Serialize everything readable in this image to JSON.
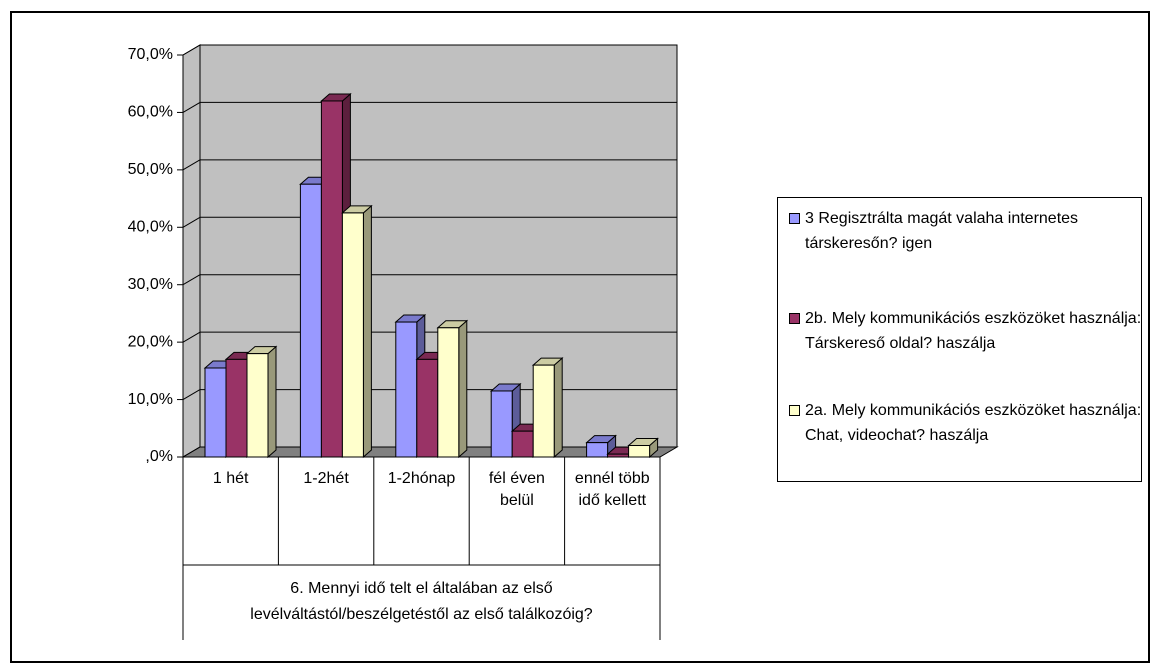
{
  "chart_data": {
    "type": "bar3d",
    "x_label": "6. Mennyi idő telt el általában az első levélváltástól/beszélgetéstől az első találkozóig?",
    "categories": [
      "1 hét",
      "1-2hét",
      "1-2hónap",
      "fél éven belül",
      "ennél több idő kellett"
    ],
    "series": [
      {
        "name": "3 Regisztrálta magát valaha internetes társkeresőn? igen",
        "color": "#9999ff",
        "values": [
          15.5,
          47.5,
          23.5,
          11.5,
          2.5
        ]
      },
      {
        "name": "2b. Mely kommunikációs eszközöket használja: Társkereső oldal? haszálja",
        "color": "#993366",
        "values": [
          17,
          62,
          17,
          4.5,
          0.5
        ]
      },
      {
        "name": "2a. Mely kommunikációs eszközöket használja: Chat, videochat? haszálja",
        "color": "#ffffcc",
        "values": [
          18,
          42.5,
          22.5,
          16,
          2
        ]
      }
    ],
    "ylim": [
      0,
      70
    ],
    "yticks": [
      {
        "value": 0,
        "label": ",0%"
      },
      {
        "value": 10,
        "label": "10,0%"
      },
      {
        "value": 20,
        "label": "20,0%"
      },
      {
        "value": 30,
        "label": "30,0%"
      },
      {
        "value": 40,
        "label": "40,0%"
      },
      {
        "value": 50,
        "label": "50,0%"
      },
      {
        "value": 60,
        "label": "60,0%"
      },
      {
        "value": 70,
        "label": "70,0%"
      }
    ],
    "grid": true,
    "wall_color": "#c0c0c0",
    "legend": "right"
  }
}
